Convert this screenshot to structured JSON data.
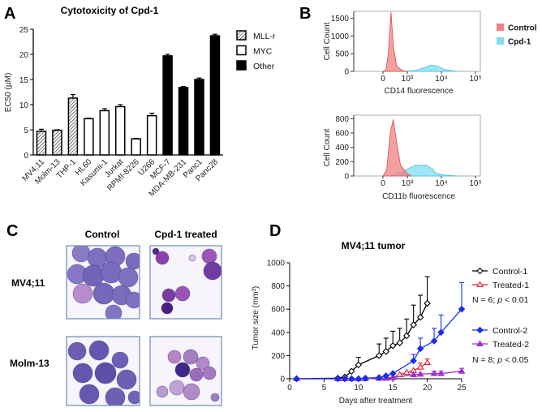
{
  "panels": {
    "A": "A",
    "B": "B",
    "C": "C",
    "D": "D"
  },
  "chart_data": [
    {
      "id": "A",
      "type": "bar",
      "title": "Cytotoxicity of Cpd-1",
      "ylabel": "EC50 (µM)",
      "xlabel": "",
      "ylim": [
        0,
        25
      ],
      "yticks": [
        "0",
        "5",
        "10",
        "15",
        "20",
        "25"
      ],
      "categories": [
        "MV4;11",
        "Molm-13",
        "THP-1",
        "HL60",
        "Kasumi-1",
        "Jurkat",
        "RPMI-8226",
        "U266",
        "MCF-7",
        "MDA-MB-231",
        "Panc1",
        "Panc28"
      ],
      "values": [
        4.7,
        4.9,
        11.3,
        7.2,
        8.8,
        9.6,
        3.2,
        7.8,
        19.7,
        13.4,
        15.0,
        23.7
      ],
      "errors": [
        0.4,
        0.1,
        0.7,
        0.1,
        0.4,
        0.4,
        0.1,
        0.5,
        0.3,
        0.2,
        0.3,
        0.3
      ],
      "groups": [
        "MLL-r",
        "MLL-r",
        "MLL-r",
        "MYC",
        "MYC",
        "MYC",
        "MYC",
        "MYC",
        "Other",
        "Other",
        "Other",
        "Other"
      ],
      "legend": [
        {
          "name": "MLL-r",
          "style": "hatched"
        },
        {
          "name": "MYC",
          "style": "white"
        },
        {
          "name": "Other",
          "style": "#000000"
        }
      ],
      "legend_position": "right",
      "grid": false
    },
    {
      "id": "B-top",
      "type": "area",
      "ylabel": "Cell Count",
      "xlabel": "CD14 fluorescence",
      "ylim": [
        0,
        1700
      ],
      "yticks": [
        "0",
        "500",
        "1000",
        "1500"
      ],
      "xticks": [
        "0",
        "10³",
        "10⁴",
        "10⁵"
      ],
      "xscale": "biexponential",
      "series": [
        {
          "name": "Control",
          "color": "#f28080",
          "points": [
            [
              0,
              0
            ],
            [
              120,
              40
            ],
            [
              220,
              500
            ],
            [
              330,
              1680
            ],
            [
              430,
              700
            ],
            [
              560,
              150
            ],
            [
              800,
              20
            ],
            [
              1000,
              0
            ]
          ]
        },
        {
          "name": "Cpd-1",
          "color": "#7fdcef",
          "points": [
            [
              900,
              0
            ],
            [
              1800,
              30
            ],
            [
              3000,
              100
            ],
            [
              5000,
              180
            ],
            [
              7000,
              160
            ],
            [
              12000,
              60
            ],
            [
              25000,
              10
            ],
            [
              35000,
              0
            ]
          ]
        }
      ]
    },
    {
      "id": "B-bottom",
      "type": "area",
      "ylabel": "Cell Count",
      "xlabel": "CD11b fluorescence",
      "ylim": [
        0,
        850
      ],
      "yticks": [
        "0",
        "200",
        "400",
        "600",
        "800"
      ],
      "xticks": [
        "0",
        "10³",
        "10⁴",
        "10⁵"
      ],
      "xscale": "biexponential",
      "series": [
        {
          "name": "Control",
          "color": "#f28080",
          "points": [
            [
              0,
              0
            ],
            [
              150,
              80
            ],
            [
              300,
              600
            ],
            [
              420,
              790
            ],
            [
              560,
              480
            ],
            [
              720,
              150
            ],
            [
              1000,
              30
            ],
            [
              1300,
              0
            ]
          ]
        },
        {
          "name": "Cpd-1",
          "color": "#7fdcef",
          "points": [
            [
              300,
              0
            ],
            [
              800,
              60
            ],
            [
              1300,
              125
            ],
            [
              1800,
              155
            ],
            [
              2500,
              148
            ],
            [
              3500,
              155
            ],
            [
              5500,
              100
            ],
            [
              7000,
              40
            ],
            [
              12000,
              15
            ],
            [
              30000,
              0
            ]
          ]
        }
      ]
    },
    {
      "id": "D",
      "type": "line",
      "title": "MV4;11 tumor",
      "xlabel": "Days after treatment",
      "ylabel": "Tumor size (mm³)",
      "xlim": [
        0,
        25
      ],
      "ylim": [
        0,
        1000
      ],
      "xticks": [
        "0",
        "5",
        "10",
        "15",
        "20",
        "25"
      ],
      "yticks": [
        "0",
        "200",
        "400",
        "600",
        "800",
        "1000"
      ],
      "series": [
        {
          "name": "Control-1",
          "color": "#000000",
          "marker": "open-diamond",
          "x": [
            1,
            7,
            8,
            9,
            10,
            13,
            14,
            15,
            16,
            17,
            18,
            19,
            20
          ],
          "y": [
            0,
            5,
            15,
            65,
            120,
            200,
            235,
            285,
            310,
            370,
            465,
            530,
            650
          ],
          "err": [
            0,
            0,
            0,
            0,
            65,
            100,
            115,
            125,
            125,
            145,
            170,
            190,
            230
          ]
        },
        {
          "name": "Treated-1",
          "color": "#e8202a",
          "marker": "open-triangle",
          "x": [
            7,
            8,
            9,
            10,
            11,
            13,
            14,
            15,
            16,
            17,
            18,
            19,
            20
          ],
          "y": [
            0,
            0,
            0,
            0,
            0,
            5,
            5,
            10,
            35,
            55,
            70,
            100,
            140
          ],
          "err": [
            0,
            0,
            0,
            0,
            0,
            0,
            0,
            0,
            0,
            0,
            0,
            35,
            30
          ]
        },
        {
          "name": "Control-2",
          "color": "#1a2ef0",
          "marker": "filled-diamond",
          "x": [
            1,
            7,
            8,
            9,
            10,
            11,
            13,
            14,
            15,
            18,
            19,
            21,
            22,
            25
          ],
          "y": [
            0,
            0,
            0,
            0,
            0,
            5,
            10,
            25,
            45,
            155,
            260,
            325,
            400,
            600
          ],
          "err": [
            0,
            0,
            0,
            0,
            0,
            0,
            0,
            0,
            0,
            55,
            90,
            110,
            150,
            230
          ]
        },
        {
          "name": "Treated-2",
          "color": "#a030d0",
          "marker": "filled-triangle",
          "x": [
            1,
            7,
            8,
            9,
            10,
            11,
            13,
            14,
            15,
            18,
            19,
            21,
            22,
            25
          ],
          "y": [
            0,
            0,
            0,
            0,
            0,
            0,
            5,
            5,
            10,
            35,
            40,
            45,
            45,
            65
          ],
          "err": [
            0,
            0,
            0,
            0,
            0,
            0,
            0,
            0,
            0,
            0,
            0,
            20,
            20,
            25
          ]
        }
      ],
      "annotations": [
        {
          "text_pre": "N = 6; ",
          "text_italic": "p",
          "text_post": " < 0.01"
        },
        {
          "text_pre": "N = 8; ",
          "text_italic": "p",
          "text_post": " < 0.05"
        }
      ],
      "legend_position": "right",
      "grid": false
    }
  ],
  "panelC": {
    "columns": [
      "Control",
      "Cpd-1 treated"
    ],
    "rows": [
      "MV4;11",
      "Molm-13"
    ]
  }
}
